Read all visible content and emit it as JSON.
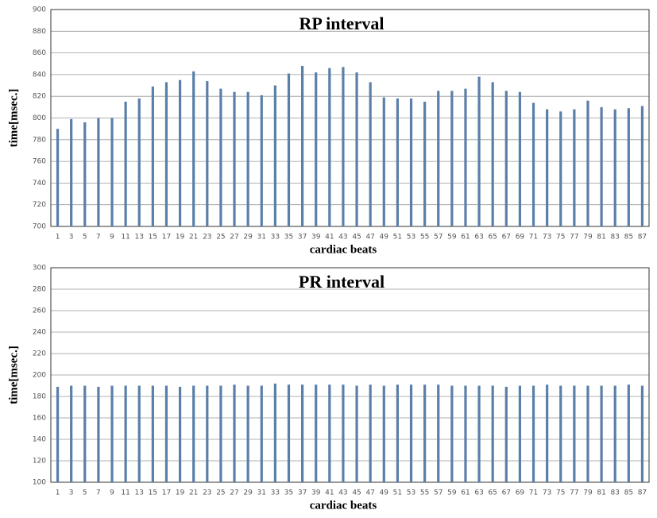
{
  "chart_data": [
    {
      "type": "bar",
      "title": "RP interval",
      "x_label": "cardiac beats",
      "y_label": "time[msec.]",
      "color": "#5a7fa8",
      "grid": true,
      "categories": [
        "1",
        "3",
        "5",
        "7",
        "9",
        "11",
        "13",
        "15",
        "17",
        "19",
        "21",
        "23",
        "25",
        "27",
        "29",
        "31",
        "33",
        "35",
        "37",
        "39",
        "41",
        "43",
        "45",
        "47",
        "49",
        "51",
        "53",
        "55",
        "57",
        "59",
        "61",
        "63",
        "65",
        "67",
        "69",
        "71",
        "73",
        "75",
        "77",
        "79",
        "81",
        "83",
        "85",
        "87"
      ],
      "values": [
        790,
        799,
        796,
        800,
        800,
        815,
        818,
        829,
        833,
        835,
        843,
        834,
        827,
        824,
        824,
        821,
        830,
        841,
        848,
        842,
        846,
        847,
        842,
        833,
        819,
        818,
        818,
        815,
        825,
        825,
        827,
        838,
        833,
        825,
        824,
        814,
        808,
        806,
        808,
        816,
        810,
        808,
        809,
        811
      ],
      "ylim": [
        700,
        900
      ],
      "yticks": [
        700,
        720,
        740,
        760,
        780,
        800,
        820,
        840,
        860,
        880,
        900
      ]
    },
    {
      "type": "bar",
      "title": "PR interval",
      "x_label": "cardiac beats",
      "y_label": "time[msec.]",
      "color": "#5a7fa8",
      "grid": true,
      "categories": [
        "1",
        "3",
        "5",
        "7",
        "9",
        "11",
        "13",
        "15",
        "17",
        "19",
        "21",
        "23",
        "25",
        "27",
        "29",
        "31",
        "33",
        "35",
        "37",
        "39",
        "41",
        "43",
        "45",
        "47",
        "49",
        "51",
        "53",
        "55",
        "57",
        "59",
        "61",
        "63",
        "65",
        "67",
        "69",
        "71",
        "73",
        "75",
        "77",
        "79",
        "81",
        "83",
        "85",
        "87"
      ],
      "values": [
        189,
        190,
        190,
        189,
        190,
        190,
        190,
        190,
        190,
        189,
        190,
        190,
        190,
        191,
        190,
        190,
        192,
        191,
        191,
        191,
        191,
        191,
        190,
        191,
        190,
        191,
        191,
        191,
        191,
        190,
        190,
        190,
        190,
        189,
        190,
        190,
        191,
        190,
        190,
        190,
        190,
        190,
        191,
        190
      ],
      "ylim": [
        100,
        300
      ],
      "yticks": [
        100,
        120,
        140,
        160,
        180,
        200,
        220,
        240,
        260,
        280,
        300
      ]
    }
  ]
}
